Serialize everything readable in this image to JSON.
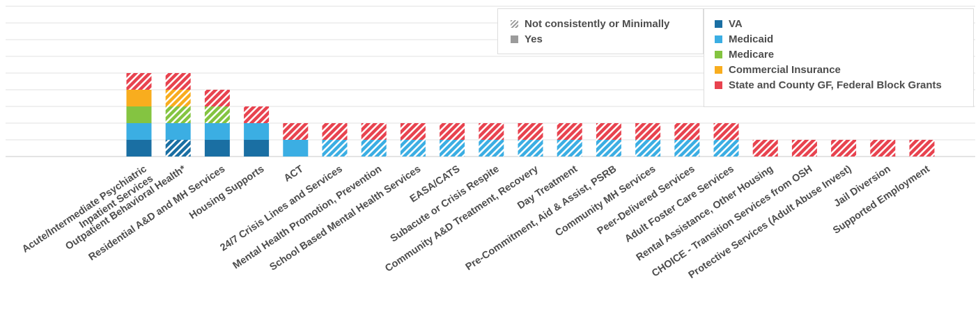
{
  "chart_data": {
    "type": "bar",
    "stacked": true,
    "grid": true,
    "categories": [
      "Acute/Intermediate Psychiatric|Inpatient Services",
      "Outpatient Behavioral Health*",
      "Residential A&D and MH Services",
      "Housing Supports",
      "ACT",
      "24/7 Crisis Lines and Services",
      "Mental Health Promotion, Prevention",
      "School Based Mental Health Services",
      "EASA/CATS",
      "Subacute or Crisis Respite",
      "Community A&D Treatment, Recovery",
      "Day Treatment",
      "Pre-Commitment, Aid & Assist, PSRB",
      "Community MH Services",
      "Peer-Delivered Services",
      "Adult Foster Care Services",
      "Rental Assistance, Other Housing",
      "CHOICE - Transition Services from OSH",
      "Protective Services (Adult Abuse Invest)",
      "Jail Diversion",
      "Supported Employment"
    ],
    "series": [
      {
        "name": "VA",
        "color": "#1a6fa3",
        "values": [
          1,
          1,
          1,
          1,
          0,
          0,
          0,
          0,
          0,
          0,
          0,
          0,
          0,
          0,
          0,
          0,
          0,
          0,
          0,
          0,
          0
        ],
        "partial": [
          0,
          1,
          0,
          0,
          0,
          0,
          0,
          0,
          0,
          0,
          0,
          0,
          0,
          0,
          0,
          0,
          0,
          0,
          0,
          0,
          0
        ]
      },
      {
        "name": "Medicaid",
        "color": "#3baee3",
        "values": [
          1,
          1,
          1,
          1,
          1,
          1,
          1,
          1,
          1,
          1,
          1,
          1,
          1,
          1,
          1,
          1,
          0,
          0,
          0,
          0,
          0
        ],
        "partial": [
          0,
          0,
          0,
          0,
          0,
          1,
          1,
          1,
          1,
          1,
          1,
          1,
          1,
          1,
          1,
          1,
          0,
          0,
          0,
          0,
          0
        ]
      },
      {
        "name": "Medicare",
        "color": "#84c441",
        "values": [
          1,
          1,
          1,
          0,
          0,
          0,
          0,
          0,
          0,
          0,
          0,
          0,
          0,
          0,
          0,
          0,
          0,
          0,
          0,
          0,
          0
        ],
        "partial": [
          0,
          1,
          1,
          0,
          0,
          0,
          0,
          0,
          0,
          0,
          0,
          0,
          0,
          0,
          0,
          0,
          0,
          0,
          0,
          0,
          0
        ]
      },
      {
        "name": "Commercial Insurance",
        "color": "#f8ad1e",
        "values": [
          1,
          1,
          0,
          0,
          0,
          0,
          0,
          0,
          0,
          0,
          0,
          0,
          0,
          0,
          0,
          0,
          0,
          0,
          0,
          0,
          0
        ],
        "partial": [
          0,
          1,
          0,
          0,
          0,
          0,
          0,
          0,
          0,
          0,
          0,
          0,
          0,
          0,
          0,
          0,
          0,
          0,
          0,
          0,
          0
        ]
      },
      {
        "name": "State and County GF, Federal Block Grants",
        "color": "#e8434f",
        "values": [
          1,
          1,
          1,
          1,
          1,
          1,
          1,
          1,
          1,
          1,
          1,
          1,
          1,
          1,
          1,
          1,
          1,
          1,
          1,
          1,
          1
        ],
        "partial": [
          1,
          1,
          1,
          1,
          1,
          1,
          1,
          1,
          1,
          1,
          1,
          1,
          1,
          1,
          1,
          1,
          1,
          1,
          1,
          1,
          1
        ]
      }
    ],
    "ylim": [
      0,
      9
    ]
  },
  "legend": {
    "patterns": [
      {
        "label": "Not consistently or Minimally",
        "style": "hatched",
        "color": "#9b9b9b"
      },
      {
        "label": "Yes",
        "style": "solid",
        "color": "#9b9b9b"
      }
    ],
    "sources": [
      {
        "label": "VA",
        "color": "#1a6fa3"
      },
      {
        "label": "Medicaid",
        "color": "#3baee3"
      },
      {
        "label": "Medicare",
        "color": "#84c441"
      },
      {
        "label": "Commercial Insurance",
        "color": "#f8ad1e"
      },
      {
        "label": "State and County GF, Federal Block Grants",
        "color": "#e8434f"
      }
    ]
  }
}
